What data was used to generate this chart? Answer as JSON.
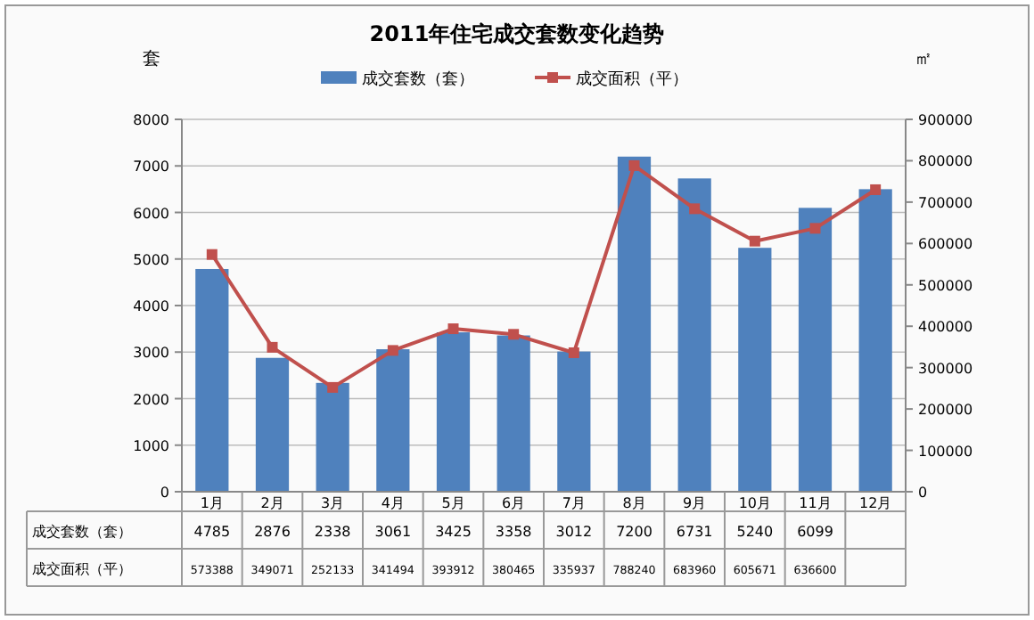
{
  "chart_data": {
    "type": "bar",
    "title": "2011年住宅成交套数变化趋势",
    "ylabel": "套",
    "y2label": "㎡",
    "categories": [
      "1月",
      "2月",
      "3月",
      "4月",
      "5月",
      "6月",
      "7月",
      "8月",
      "9月",
      "10月",
      "11月",
      "12月"
    ],
    "series": [
      {
        "name": "成交套数（套）",
        "color": "#4f81bd",
        "values": [
          4785,
          2876,
          2338,
          3061,
          3425,
          3358,
          3012,
          7200,
          6731,
          5240,
          6099,
          6500
        ],
        "value_labels": [
          "4785",
          "2876",
          "2338",
          "3061",
          "3425",
          "3358",
          "3012",
          "7200",
          "6731",
          "5240",
          "6099",
          null
        ]
      },
      {
        "name": "成交面积（平）",
        "type": "line",
        "axis": "y2",
        "color": "#c0504d",
        "marker": "square",
        "values": [
          573388,
          349071,
          252133,
          341494,
          393912,
          380465,
          335937,
          788240,
          683960,
          605671,
          636600,
          730000
        ],
        "value_labels": [
          "573388",
          "349071",
          "252133",
          "341494",
          "393912",
          "380465",
          "335937",
          "788240",
          "683960",
          "605671",
          "636600",
          null
        ]
      }
    ],
    "ylim": [
      0,
      8000
    ],
    "yticks": [
      0,
      1000,
      2000,
      3000,
      4000,
      5000,
      6000,
      7000,
      8000
    ],
    "y2lim": [
      0,
      900000
    ],
    "y2ticks": [
      0,
      100000,
      200000,
      300000,
      400000,
      500000,
      600000,
      700000,
      800000,
      900000
    ],
    "grid": "y",
    "legend": "top"
  }
}
